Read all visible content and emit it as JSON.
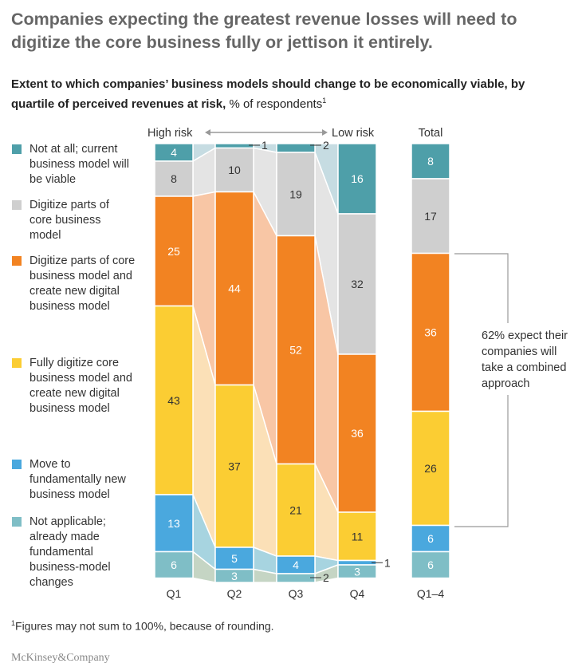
{
  "title": "Companies expecting the greatest revenue losses will need to digitize the core business fully or jettison it entirely.",
  "subtitle": {
    "bold": "Extent to which companies’ business models should change to be economically viable, by quartile of perceived revenues at risk,",
    "normal": " % of respondents",
    "sup": "1"
  },
  "footnote": {
    "sup": "1",
    "text": "Figures may not sum to 100%, because of rounding."
  },
  "logo": "McKinsey&Company",
  "chart_data": {
    "type": "bar",
    "stacked": true,
    "categories": [
      "Q1",
      "Q2",
      "Q3",
      "Q4",
      "Q1–4"
    ],
    "axis_labels": {
      "high": "High risk",
      "low": "Low risk",
      "total": "Total"
    },
    "series": [
      {
        "name": "Not at all; current business model will be viable",
        "color": "#4e9fa9",
        "light": "#c6dce2",
        "values": [
          4,
          1,
          2,
          16,
          8
        ]
      },
      {
        "name": "Digitize parts of core business model",
        "color": "#cfcfcf",
        "light": "#e4e4e4",
        "values": [
          8,
          10,
          19,
          32,
          17
        ]
      },
      {
        "name": "Digitize parts of core business model and create new digital business model",
        "color": "#f28322",
        "light": "#f8c6a5",
        "values": [
          25,
          44,
          52,
          36,
          36
        ]
      },
      {
        "name": "Fully digitize core business model and create new digital business model",
        "color": "#fbcd33",
        "light": "#fbe0b7",
        "values": [
          43,
          37,
          21,
          11,
          26
        ]
      },
      {
        "name": "Move to fundamentally new business model",
        "color": "#4aa8de",
        "light": "#a7d4e0",
        "values": [
          13,
          5,
          4,
          1,
          6
        ]
      },
      {
        "name": "Not applicable; already made fundamental business-model changes",
        "color": "#7fbec6",
        "light": "#c5d5c4",
        "values": [
          6,
          3,
          2,
          3,
          6
        ]
      }
    ],
    "annotation": "62% expect their companies will take a combined approach"
  }
}
